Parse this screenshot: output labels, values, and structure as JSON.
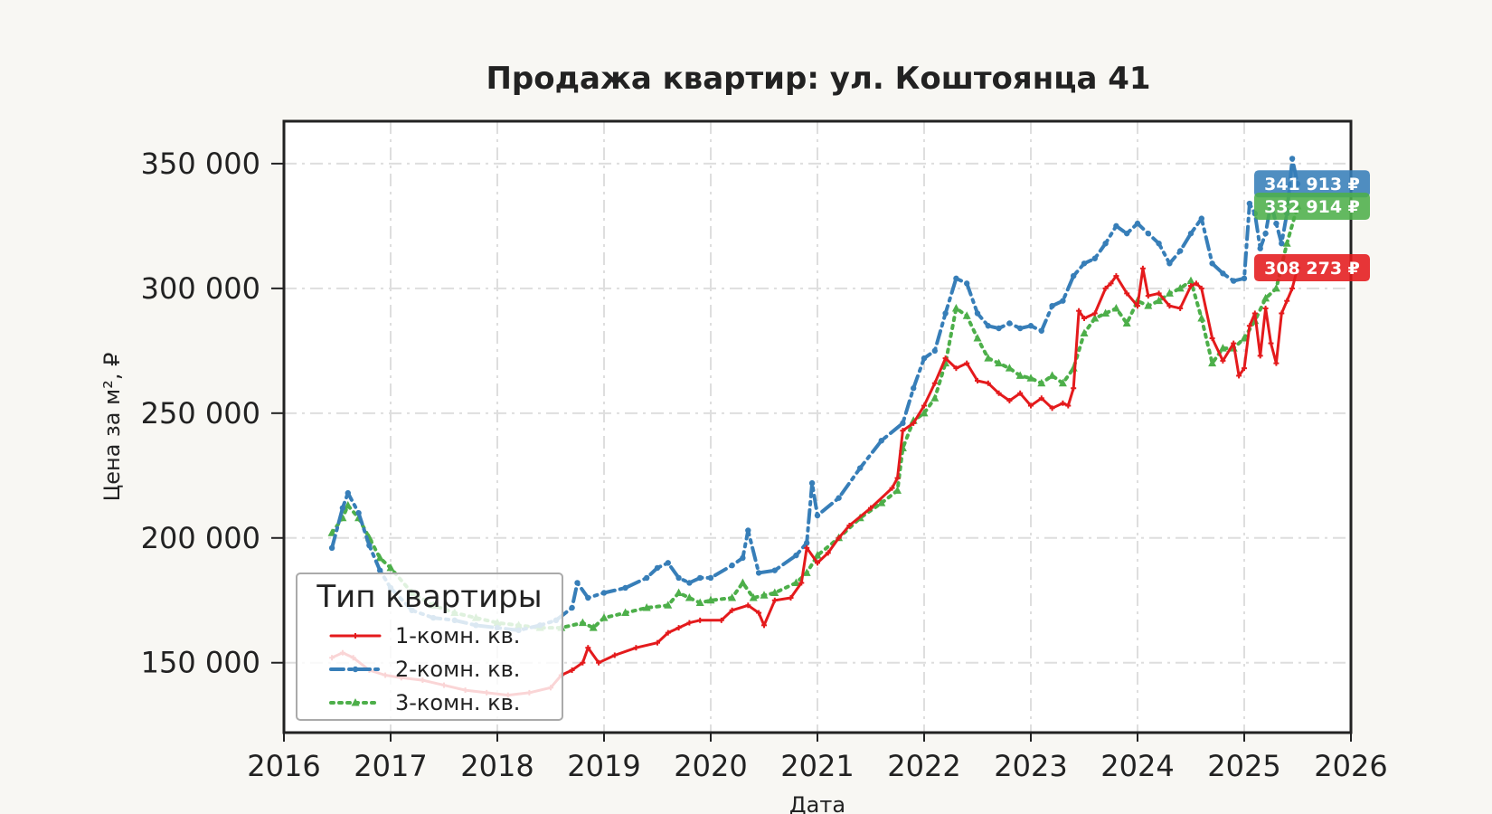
{
  "chart_data": {
    "type": "line",
    "title": "Продажа квартир: ул. Коштоянца 41",
    "xlabel": "Дата",
    "ylabel": "Цена за м², ₽",
    "xlim": [
      2016,
      2026
    ],
    "ylim": [
      122000,
      367000
    ],
    "x_ticks": [
      2016,
      2017,
      2018,
      2019,
      2020,
      2021,
      2022,
      2023,
      2024,
      2025,
      2026
    ],
    "x_tick_labels": [
      "2016",
      "2017",
      "2018",
      "2019",
      "2020",
      "2021",
      "2022",
      "2023",
      "2024",
      "2025",
      "2026"
    ],
    "y_ticks": [
      150000,
      200000,
      250000,
      300000,
      350000
    ],
    "y_tick_labels": [
      "150 000",
      "200 000",
      "250 000",
      "300 000",
      "350 000"
    ],
    "grid": true,
    "legend": {
      "title": "Тип квартиры",
      "position": "lower-left"
    },
    "series": [
      {
        "name": "1-комн. кв.",
        "color": "#e41a1c",
        "line_style": "solid",
        "marker": "plus",
        "last_value_label": "308 273 ₽",
        "last_value": 308273,
        "x": [
          2016.45,
          2016.55,
          2016.65,
          2016.8,
          2016.95,
          2017.1,
          2017.3,
          2017.5,
          2017.7,
          2017.9,
          2018.1,
          2018.3,
          2018.5,
          2018.6,
          2018.7,
          2018.8,
          2018.85,
          2018.95,
          2019.1,
          2019.3,
          2019.5,
          2019.6,
          2019.7,
          2019.8,
          2019.9,
          2020.1,
          2020.2,
          2020.35,
          2020.45,
          2020.5,
          2020.6,
          2020.75,
          2020.85,
          2020.9,
          2021.0,
          2021.1,
          2021.2,
          2021.3,
          2021.5,
          2021.7,
          2021.75,
          2021.8,
          2021.9,
          2022.0,
          2022.1,
          2022.2,
          2022.3,
          2022.4,
          2022.5,
          2022.6,
          2022.7,
          2022.8,
          2022.9,
          2023.0,
          2023.1,
          2023.2,
          2023.3,
          2023.35,
          2023.4,
          2023.45,
          2023.5,
          2023.6,
          2023.7,
          2023.75,
          2023.8,
          2023.9,
          2024.0,
          2024.05,
          2024.1,
          2024.2,
          2024.3,
          2024.4,
          2024.5,
          2024.55,
          2024.6,
          2024.7,
          2024.8,
          2024.9,
          2024.95,
          2025.0,
          2025.05,
          2025.1,
          2025.15,
          2025.2,
          2025.25,
          2025.3,
          2025.35,
          2025.4,
          2025.45,
          2025.5
        ],
        "y": [
          152000,
          154000,
          152000,
          147000,
          145000,
          144000,
          143000,
          141000,
          139000,
          138000,
          137000,
          138000,
          140000,
          145000,
          147000,
          150000,
          156000,
          150000,
          153000,
          156000,
          158000,
          162000,
          164000,
          166000,
          167000,
          167000,
          171000,
          173000,
          170000,
          165000,
          175000,
          176000,
          182000,
          196000,
          190000,
          194000,
          200000,
          205000,
          212000,
          220000,
          224000,
          243000,
          246000,
          253000,
          262000,
          272000,
          268000,
          270000,
          263000,
          262000,
          258000,
          255000,
          258000,
          253000,
          256000,
          252000,
          254000,
          253000,
          260000,
          291000,
          288000,
          290000,
          300000,
          302000,
          305000,
          298000,
          293000,
          308000,
          297000,
          298000,
          293000,
          292000,
          301000,
          302000,
          300000,
          280000,
          271000,
          278000,
          265000,
          268000,
          285000,
          290000,
          273000,
          292000,
          278000,
          270000,
          290000,
          295000,
          300000,
          308273
        ]
      },
      {
        "name": "2-комн. кв.",
        "color": "#377eb8",
        "line_style": "dashdot",
        "marker": "dot",
        "last_value_label": "341 913 ₽",
        "last_value": 341913,
        "x": [
          2016.45,
          2016.55,
          2016.6,
          2016.7,
          2016.8,
          2016.9,
          2017.0,
          2017.2,
          2017.4,
          2017.6,
          2017.8,
          2018.0,
          2018.2,
          2018.4,
          2018.55,
          2018.7,
          2018.75,
          2018.85,
          2019.0,
          2019.2,
          2019.4,
          2019.5,
          2019.6,
          2019.7,
          2019.8,
          2019.9,
          2020.0,
          2020.2,
          2020.3,
          2020.35,
          2020.45,
          2020.6,
          2020.8,
          2020.9,
          2020.95,
          2021.0,
          2021.2,
          2021.4,
          2021.6,
          2021.8,
          2021.9,
          2022.0,
          2022.1,
          2022.2,
          2022.3,
          2022.4,
          2022.5,
          2022.6,
          2022.7,
          2022.8,
          2022.9,
          2023.0,
          2023.1,
          2023.2,
          2023.3,
          2023.4,
          2023.5,
          2023.6,
          2023.7,
          2023.8,
          2023.9,
          2024.0,
          2024.1,
          2024.2,
          2024.3,
          2024.4,
          2024.5,
          2024.6,
          2024.7,
          2024.8,
          2024.9,
          2025.0,
          2025.05,
          2025.1,
          2025.15,
          2025.2,
          2025.25,
          2025.3,
          2025.35,
          2025.4,
          2025.45,
          2025.5
        ],
        "y": [
          196000,
          212000,
          218000,
          210000,
          197000,
          187000,
          180000,
          171000,
          168000,
          167000,
          165000,
          164000,
          163000,
          165000,
          167000,
          172000,
          182000,
          176000,
          178000,
          180000,
          184000,
          188000,
          190000,
          184000,
          182000,
          184000,
          184000,
          189000,
          192000,
          203000,
          186000,
          187000,
          193000,
          198000,
          222000,
          209000,
          216000,
          228000,
          239000,
          246000,
          260000,
          272000,
          275000,
          290000,
          304000,
          302000,
          290000,
          285000,
          284000,
          286000,
          284000,
          285000,
          283000,
          293000,
          295000,
          305000,
          310000,
          312000,
          318000,
          325000,
          322000,
          326000,
          322000,
          318000,
          310000,
          315000,
          322000,
          328000,
          310000,
          306000,
          303000,
          304000,
          334000,
          330000,
          316000,
          322000,
          334000,
          326000,
          318000,
          330000,
          352000,
          341913
        ]
      },
      {
        "name": "3-комн. кв.",
        "color": "#4daf4a",
        "line_style": "dotted",
        "marker": "triangle",
        "last_value_label": "332 914 ₽",
        "last_value": 332914,
        "x": [
          2016.45,
          2016.55,
          2016.6,
          2016.7,
          2016.8,
          2016.9,
          2017.0,
          2017.2,
          2017.4,
          2017.6,
          2017.8,
          2018.0,
          2018.2,
          2018.4,
          2018.6,
          2018.8,
          2018.9,
          2019.0,
          2019.2,
          2019.4,
          2019.6,
          2019.7,
          2019.8,
          2019.9,
          2020.0,
          2020.2,
          2020.3,
          2020.4,
          2020.5,
          2020.6,
          2020.8,
          2020.9,
          2021.0,
          2021.2,
          2021.4,
          2021.6,
          2021.75,
          2021.8,
          2021.9,
          2022.0,
          2022.1,
          2022.2,
          2022.3,
          2022.4,
          2022.5,
          2022.6,
          2022.7,
          2022.8,
          2022.9,
          2023.0,
          2023.1,
          2023.2,
          2023.3,
          2023.4,
          2023.5,
          2023.6,
          2023.7,
          2023.8,
          2023.9,
          2024.0,
          2024.1,
          2024.2,
          2024.3,
          2024.4,
          2024.5,
          2024.6,
          2024.7,
          2024.8,
          2024.9,
          2025.0,
          2025.1,
          2025.2,
          2025.3,
          2025.4,
          2025.5
        ],
        "y": [
          202000,
          208000,
          213000,
          208000,
          200000,
          192000,
          188000,
          178000,
          173000,
          170000,
          168000,
          166000,
          165000,
          164000,
          164000,
          166000,
          164000,
          168000,
          170000,
          172000,
          173000,
          178000,
          176000,
          174000,
          175000,
          176000,
          182000,
          176000,
          177000,
          178000,
          182000,
          186000,
          193000,
          200000,
          208000,
          214000,
          219000,
          236000,
          247000,
          250000,
          256000,
          270000,
          292000,
          289000,
          280000,
          272000,
          270000,
          268000,
          265000,
          264000,
          262000,
          265000,
          262000,
          268000,
          282000,
          288000,
          290000,
          292000,
          286000,
          295000,
          293000,
          295000,
          298000,
          300000,
          303000,
          288000,
          270000,
          276000,
          276000,
          280000,
          287000,
          296000,
          300000,
          318000,
          332914
        ]
      }
    ]
  }
}
